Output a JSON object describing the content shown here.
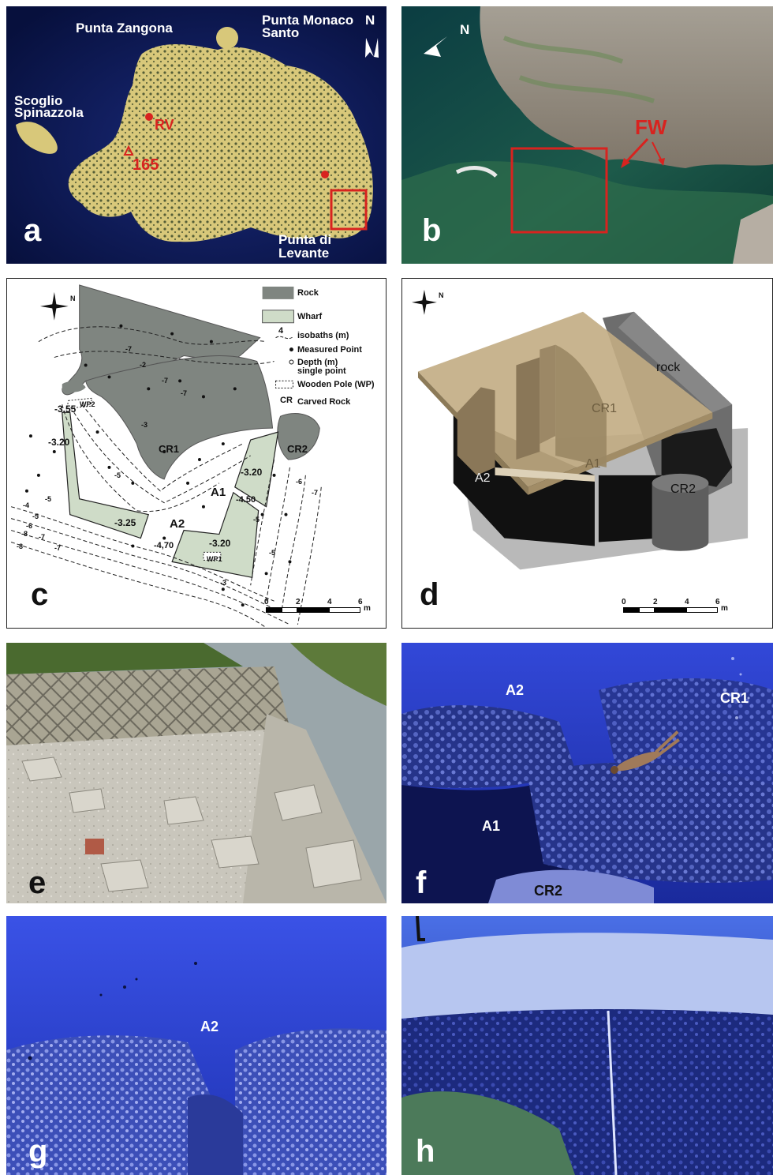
{
  "panels": {
    "a": {
      "label": "a",
      "places": {
        "punta_zangona": "Punta Zangona",
        "punta_monaco_line1": "Punta Monaco",
        "punta_monaco_line2": "Santo",
        "scoglio_line1": "Scoglio",
        "scoglio_line2": "Spinazzola",
        "punta_levante_line1": "Punta di",
        "punta_levante_line2": "Levante"
      },
      "markers": {
        "rv": "RV",
        "elevation": "165",
        "north": "N"
      }
    },
    "b": {
      "label": "b",
      "north": "N",
      "fw": "FW"
    },
    "c": {
      "label": "c",
      "legend": {
        "rock": "Rock",
        "wharf": "Wharf",
        "isobaths": "isobaths (m)",
        "isobath_sample": "4",
        "measured": "Measured Point",
        "depth_line1": "Depth (m)",
        "depth_line2": "single point",
        "pole": "Wooden Pole (WP)",
        "carved_abbr": "CR",
        "carved": "Carved Rock"
      },
      "labels": {
        "cr1": "CR1",
        "cr2": "CR2",
        "a1": "A1",
        "a2": "A2",
        "wp1": "WP1",
        "wp2": "WP2",
        "d_355": "-3.55",
        "d_320a": "-3.20",
        "d_320b": "-3.20",
        "d_320c": "-3.20",
        "d_325": "-3.25",
        "d_450": "-4.50",
        "d_470": "-4,70"
      },
      "isobath_values": [
        "-7",
        "-7",
        "-2",
        "-3",
        "-7",
        "-5",
        "-5",
        "-6",
        "-7",
        "-5",
        "-4",
        "-5",
        "-6",
        "-7",
        "-8",
        "-8",
        "-5",
        "-7",
        "-3"
      ],
      "scale": {
        "ticks": [
          "0",
          "2",
          "4",
          "6"
        ],
        "unit": "m"
      },
      "north": "N"
    },
    "d": {
      "label": "d",
      "labels": {
        "rock": "rock",
        "cr1": "CR1",
        "cr2": "CR2",
        "a1": "A1",
        "a2": "A2"
      },
      "scale": {
        "ticks": [
          "0",
          "2",
          "4",
          "6"
        ],
        "unit": "m"
      },
      "north": "N"
    },
    "e": {
      "label": "e"
    },
    "f": {
      "label": "f",
      "labels": {
        "a2": "A2",
        "cr1": "CR1",
        "a1": "A1",
        "cr2": "CR2"
      }
    },
    "g": {
      "label": "g",
      "labels": {
        "a2": "A2"
      }
    },
    "h": {
      "label": "h"
    }
  },
  "colors": {
    "satellite_bg": "#0c1550",
    "island": "#d8c87a",
    "rock_fill": "#7f8580",
    "wharf_fill": "#cfdcc8",
    "marker_red": "#d8231f",
    "water_blue": "#2a3fd0"
  }
}
